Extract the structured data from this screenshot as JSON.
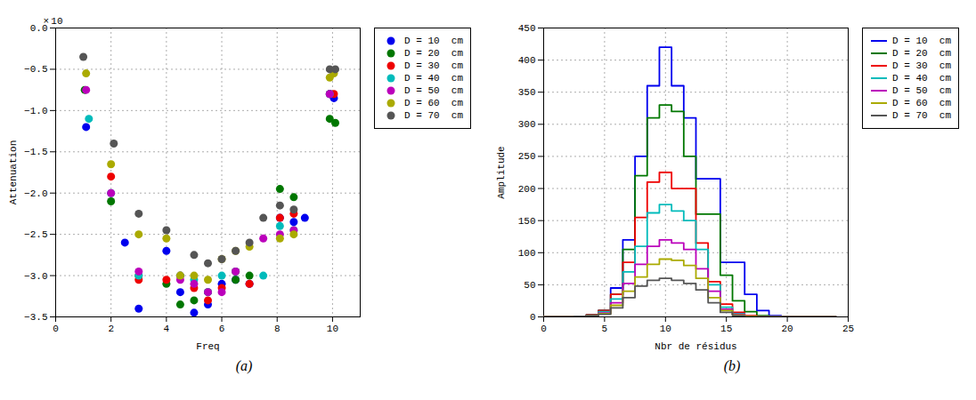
{
  "chart_data": [
    {
      "type": "scatter",
      "caption": "(a)",
      "annotation": "× 10",
      "xlabel": "Freq",
      "ylabel": "Attenuation",
      "xlim": [
        0,
        11
      ],
      "ylim": [
        -3.5,
        0
      ],
      "xticks": [
        0,
        2,
        4,
        6,
        8,
        10
      ],
      "yticks": [
        {
          "value": 0,
          "label": "0.0"
        },
        {
          "value": -0.5,
          "label": "−0.5"
        },
        {
          "value": -1.0,
          "label": "−1.0"
        },
        {
          "value": -1.5,
          "label": "−1.5"
        },
        {
          "value": -2.0,
          "label": "−2.0"
        },
        {
          "value": -2.5,
          "label": "−2.5"
        },
        {
          "value": -3.0,
          "label": "−3.0"
        },
        {
          "value": -3.5,
          "label": "−3.5"
        }
      ],
      "grid": true,
      "legend": "upper right",
      "marker": "circle",
      "series": [
        {
          "name": "D = 10  cm",
          "color": "#0000ee",
          "x": [
            1.1,
            2.5,
            3.0,
            4.0,
            4.5,
            5.0,
            5.5,
            6.0,
            6.5,
            7.0,
            8.1,
            8.6,
            9.0,
            9.9,
            10.05
          ],
          "values": [
            -1.2,
            -2.6,
            -3.4,
            -2.7,
            -3.2,
            -3.45,
            -3.35,
            -3.1,
            -3.05,
            -3.1,
            -2.3,
            -2.35,
            -2.3,
            -0.8,
            -0.85
          ]
        },
        {
          "name": "D = 20  cm",
          "color": "#007700",
          "x": [
            1.05,
            2.0,
            3.0,
            4.0,
            4.5,
            5.0,
            5.5,
            6.5,
            7.0,
            8.1,
            8.6,
            9.9,
            10.1
          ],
          "values": [
            -0.75,
            -2.1,
            -3.0,
            -3.1,
            -3.35,
            -3.3,
            -3.2,
            -3.05,
            -3.0,
            -1.95,
            -2.05,
            -1.1,
            -1.15
          ]
        },
        {
          "name": "D = 30  cm",
          "color": "#ee0000",
          "x": [
            2.0,
            3.0,
            4.0,
            4.5,
            5.0,
            5.5,
            6.0,
            6.5,
            7.0,
            8.1,
            8.6,
            9.9,
            10.05
          ],
          "values": [
            -1.8,
            -3.05,
            -3.05,
            -3.0,
            -3.15,
            -3.3,
            -3.15,
            -2.95,
            -3.1,
            -2.3,
            -2.25,
            -0.8,
            -0.8
          ]
        },
        {
          "name": "D = 40  cm",
          "color": "#00bbbb",
          "x": [
            1.2,
            2.0,
            3.0,
            4.5,
            5.0,
            5.5,
            6.0,
            6.5,
            7.5,
            8.1,
            8.6,
            9.9
          ],
          "values": [
            -1.1,
            -2.0,
            -3.0,
            -3.0,
            -3.05,
            -3.2,
            -3.0,
            -2.95,
            -3.0,
            -2.4,
            -2.45,
            -0.8
          ]
        },
        {
          "name": "D = 50  cm",
          "color": "#bb00bb",
          "x": [
            1.1,
            2.0,
            3.0,
            4.5,
            5.0,
            5.5,
            6.0,
            6.5,
            7.5,
            8.1,
            8.6,
            9.9
          ],
          "values": [
            -0.75,
            -2.0,
            -2.95,
            -3.05,
            -3.1,
            -3.2,
            -3.2,
            -2.95,
            -2.55,
            -2.5,
            -2.45,
            -0.8
          ]
        },
        {
          "name": "D = 60  cm",
          "color": "#aaaa00",
          "x": [
            1.1,
            2.0,
            3.0,
            4.0,
            4.5,
            5.0,
            5.5,
            6.0,
            6.5,
            7.0,
            8.1,
            8.6,
            9.9,
            10.05
          ],
          "values": [
            -0.55,
            -1.65,
            -2.5,
            -2.55,
            -3.0,
            -3.0,
            -3.05,
            -2.8,
            -2.7,
            -2.65,
            -2.55,
            -2.5,
            -0.6,
            -0.55
          ]
        },
        {
          "name": "D = 70  cm",
          "color": "#555555",
          "x": [
            1.0,
            2.1,
            3.0,
            4.0,
            5.0,
            5.5,
            6.0,
            6.5,
            7.0,
            7.5,
            8.1,
            8.6,
            9.9,
            10.1
          ],
          "values": [
            -0.35,
            -1.4,
            -2.25,
            -2.45,
            -2.75,
            -2.85,
            -2.8,
            -2.7,
            -2.6,
            -2.3,
            -2.15,
            -2.2,
            -0.5,
            -0.5
          ]
        }
      ]
    },
    {
      "type": "line",
      "caption": "(b)",
      "xlabel": "Nbr de résidus",
      "ylabel": "Amplitude",
      "xlim": [
        0,
        25
      ],
      "ylim": [
        0,
        450
      ],
      "xticks": [
        0,
        5,
        10,
        15,
        20,
        25
      ],
      "yticks": [
        0,
        50,
        100,
        150,
        200,
        250,
        300,
        350,
        400,
        450
      ],
      "grid": true,
      "legend": "upper right",
      "line_style": "steps",
      "x": [
        0,
        1,
        2,
        3,
        4,
        5,
        6,
        7,
        8,
        9,
        10,
        11,
        12,
        13,
        14,
        15,
        16,
        17,
        18,
        19,
        20,
        21,
        22,
        23,
        24
      ],
      "series": [
        {
          "name": "D = 10  cm",
          "color": "#0000ee",
          "values": [
            0,
            0,
            0,
            1,
            3,
            10,
            45,
            120,
            250,
            360,
            420,
            360,
            310,
            215,
            215,
            85,
            85,
            35,
            10,
            2,
            1,
            0,
            0,
            0,
            0
          ]
        },
        {
          "name": "D = 20  cm",
          "color": "#007700",
          "values": [
            0,
            0,
            0,
            1,
            3,
            10,
            35,
            105,
            220,
            310,
            330,
            320,
            250,
            160,
            160,
            65,
            25,
            8,
            2,
            0,
            0,
            0,
            0,
            0,
            0
          ]
        },
        {
          "name": "D = 30  cm",
          "color": "#ee0000",
          "values": [
            0,
            0,
            0,
            1,
            3,
            10,
            35,
            85,
            155,
            210,
            225,
            200,
            200,
            115,
            55,
            20,
            7,
            2,
            0,
            0,
            0,
            0,
            0,
            0,
            0
          ]
        },
        {
          "name": "D = 40  cm",
          "color": "#00bbbb",
          "values": [
            0,
            0,
            0,
            1,
            2,
            8,
            28,
            70,
            110,
            162,
            175,
            165,
            150,
            105,
            50,
            15,
            5,
            1,
            0,
            0,
            0,
            0,
            0,
            0,
            0
          ]
        },
        {
          "name": "D = 50  cm",
          "color": "#bb00bb",
          "values": [
            0,
            0,
            0,
            1,
            2,
            6,
            22,
            52,
            82,
            110,
            120,
            115,
            105,
            75,
            40,
            12,
            4,
            1,
            0,
            0,
            0,
            0,
            0,
            0,
            0
          ]
        },
        {
          "name": "D = 60  cm",
          "color": "#aaaa00",
          "values": [
            0,
            0,
            0,
            1,
            2,
            5,
            18,
            40,
            62,
            82,
            90,
            88,
            80,
            60,
            30,
            10,
            3,
            1,
            0,
            0,
            0,
            0,
            0,
            0,
            0
          ]
        },
        {
          "name": "D = 70  cm",
          "color": "#555555",
          "values": [
            0,
            0,
            0,
            1,
            2,
            4,
            14,
            30,
            48,
            57,
            60,
            57,
            52,
            42,
            22,
            7,
            2,
            0,
            0,
            0,
            0,
            0,
            0,
            0,
            0
          ]
        }
      ]
    }
  ]
}
